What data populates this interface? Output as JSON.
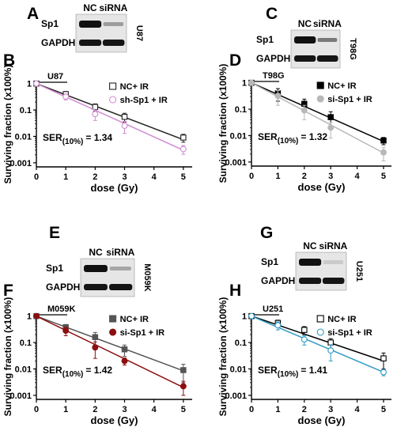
{
  "panels": [
    {
      "letter": "A",
      "blot": {
        "lanes": [
          "NC",
          "siRNA"
        ],
        "bands": [
          "Sp1",
          "GAPDH"
        ],
        "cell_line": "U87",
        "knockdown_intensity": 0.35
      }
    },
    {
      "letter": "C",
      "blot": {
        "lanes": [
          "NC",
          "siRNA"
        ],
        "bands": [
          "Sp1",
          "GAPDH"
        ],
        "cell_line": "T98G",
        "knockdown_intensity": 0.55
      }
    },
    {
      "letter": "E",
      "blot": {
        "lanes": [
          "NC",
          "siRNA"
        ],
        "bands": [
          "Sp1",
          "GAPDH"
        ],
        "cell_line": "M059K",
        "knockdown_intensity": 0.3
      }
    },
    {
      "letter": "G",
      "blot": {
        "lanes": [
          "NC",
          "siRNA"
        ],
        "bands": [
          "Sp1",
          "GAPDH"
        ],
        "cell_line": "U251",
        "knockdown_intensity": 0.1
      }
    }
  ],
  "chart_data": [
    {
      "panel": "B",
      "type": "scatter",
      "cell_label": "U87",
      "xlabel": "dose (Gy)",
      "ylabel": "Surviving fraction (x100%)",
      "xlim": [
        0,
        5.3
      ],
      "ylim": [
        0.0007,
        1.2
      ],
      "yscale": "log",
      "x_ticks": [
        "0",
        "1",
        "2",
        "3",
        "4",
        "5"
      ],
      "y_ticks": [
        "1",
        "0.1",
        "0.01",
        "0.001"
      ],
      "ser_prefix": "SER",
      "ser_sub": "(10%)",
      "ser_value": "= 1.34",
      "legend_position": "top-right",
      "series": [
        {
          "name": "NC+ IR",
          "x": [
            0,
            1,
            2,
            3,
            5
          ],
          "y": [
            1,
            0.4,
            0.13,
            0.055,
            0.009
          ],
          "err": [
            0,
            0.1,
            0.04,
            0.02,
            0.003
          ],
          "fit_end": 0.0075,
          "color": "#222222",
          "marker": "open-square"
        },
        {
          "name": "sh-Sp1 + IR",
          "x": [
            0,
            1,
            2,
            3,
            5
          ],
          "y": [
            1,
            0.32,
            0.07,
            0.025,
            0.0033
          ],
          "err": [
            0,
            0.08,
            0.03,
            0.012,
            0.0012
          ],
          "fit_end": 0.003,
          "color": "#d18ad1",
          "marker": "open-circle"
        }
      ]
    },
    {
      "panel": "D",
      "type": "scatter",
      "cell_label": "T98G",
      "xlabel": "dose (Gy)",
      "ylabel": "Surviving fraction (x100%)",
      "xlim": [
        0,
        5.3
      ],
      "ylim": [
        0.0007,
        1.2
      ],
      "yscale": "log",
      "x_ticks": [
        "0",
        "1",
        "2",
        "3",
        "4",
        "5"
      ],
      "y_ticks": [
        "1",
        "0.1",
        "0.01",
        "0.001"
      ],
      "ser_prefix": "SER",
      "ser_sub": "(10%)",
      "ser_value": "= 1.32",
      "legend_position": "top-right",
      "series": [
        {
          "name": "NC+ IR",
          "x": [
            0,
            1,
            2,
            3,
            5
          ],
          "y": [
            1,
            0.4,
            0.16,
            0.05,
            0.0065
          ],
          "err": [
            0,
            0.2,
            0.08,
            0.03,
            0.002
          ],
          "fit_end": 0.006,
          "color": "#000000",
          "marker": "filled-square"
        },
        {
          "name": "si-Sp1 + IR",
          "x": [
            0,
            1,
            2,
            3,
            5
          ],
          "y": [
            1,
            0.32,
            0.09,
            0.02,
            0.0023
          ],
          "err": [
            0,
            0.18,
            0.05,
            0.012,
            0.0012
          ],
          "fit_end": 0.0022,
          "color": "#b8b8b8",
          "marker": "filled-circle"
        }
      ]
    },
    {
      "panel": "F",
      "type": "scatter",
      "cell_label": "M059K",
      "xlabel": "dose (Gy)",
      "ylabel": "Surviving fraction (x100%)",
      "xlim": [
        0,
        5.3
      ],
      "ylim": [
        0.0007,
        1.2
      ],
      "yscale": "log",
      "x_ticks": [
        "0",
        "1",
        "2",
        "3",
        "4",
        "5"
      ],
      "y_ticks": [
        "1",
        "0.1",
        "0.01",
        "0.001"
      ],
      "ser_prefix": "SER",
      "ser_sub": "(10%)",
      "ser_value": "= 1.42",
      "legend_position": "top-right",
      "series": [
        {
          "name": "NC+ IR",
          "x": [
            0,
            1,
            2,
            3,
            5
          ],
          "y": [
            1,
            0.38,
            0.16,
            0.055,
            0.009
          ],
          "err": [
            0,
            0.1,
            0.08,
            0.025,
            0.006
          ],
          "fit_end": 0.0085,
          "color": "#555555",
          "marker": "filled-square"
        },
        {
          "name": "si-Sp1 + IR",
          "x": [
            0,
            1,
            2,
            3,
            5
          ],
          "y": [
            1,
            0.28,
            0.065,
            0.02,
            0.0022
          ],
          "err": [
            0,
            0.1,
            0.04,
            0.006,
            0.0012
          ],
          "fit_end": 0.002,
          "color": "#8b0f10",
          "marker": "filled-circle"
        }
      ]
    },
    {
      "panel": "H",
      "type": "scatter",
      "cell_label": "U251",
      "xlabel": "dose (Gy)",
      "ylabel": "Surviving fraction (x100%)",
      "xlim": [
        0,
        5.3
      ],
      "ylim": [
        0.0007,
        1.2
      ],
      "yscale": "log",
      "x_ticks": [
        "0",
        "1",
        "2",
        "3",
        "4",
        "5"
      ],
      "y_ticks": [
        "1",
        "0.1",
        "0.01",
        "0.001"
      ],
      "ser_prefix": "SER",
      "ser_sub": "(10%)",
      "ser_value": "= 1.41",
      "legend_position": "top-right",
      "series": [
        {
          "name": "NC+ IR",
          "x": [
            0,
            1,
            2,
            3,
            5
          ],
          "y": [
            1,
            0.55,
            0.3,
            0.1,
            0.025
          ],
          "err": [
            0,
            0.15,
            0.1,
            0.04,
            0.015
          ],
          "fit_end": 0.02,
          "color": "#000000",
          "marker": "open-square"
        },
        {
          "name": "si-Sp1 + IR",
          "x": [
            0,
            1,
            2,
            3,
            5
          ],
          "y": [
            1,
            0.45,
            0.13,
            0.05,
            0.0075
          ],
          "err": [
            0,
            0.15,
            0.05,
            0.03,
            0.002
          ],
          "fit_end": 0.0075,
          "color": "#2f9bc4",
          "marker": "open-circle"
        }
      ]
    }
  ]
}
